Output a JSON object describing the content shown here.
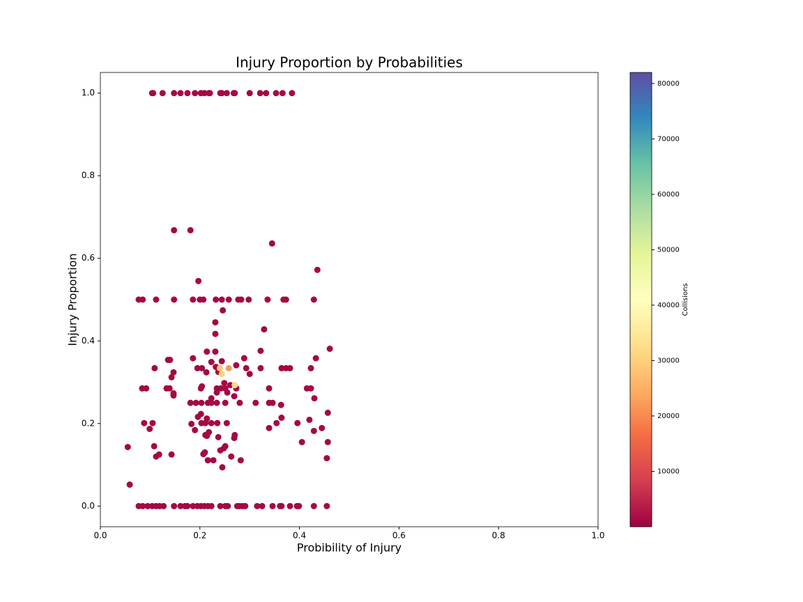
{
  "chart_data": {
    "type": "scatter",
    "title": "Injury Proportion by Probabilities",
    "x_label": "Probibility of Injury",
    "y_label": "Injury Proportion",
    "colorbar_label": "Collisions",
    "colormap": "Spectral",
    "xlim": [
      0,
      1
    ],
    "ylim": [
      -0.05,
      1.05
    ],
    "xticks": [
      {
        "value": 0,
        "label": "0.0"
      },
      0.2,
      0.4,
      0.6,
      0.8,
      {
        "value": 1,
        "label": "1.0"
      }
    ],
    "yticks": [
      {
        "value": 0,
        "label": "0.0"
      },
      0.2,
      0.4,
      0.6,
      0.8,
      {
        "value": 1,
        "label": "1.0"
      }
    ],
    "clim": [
      0,
      82000
    ],
    "cticks": [
      10000,
      20000,
      30000,
      40000,
      50000,
      60000,
      70000,
      80000
    ],
    "x": [
      0.104,
      0.106,
      0.125,
      0.148,
      0.161,
      0.175,
      0.19,
      0.202,
      0.209,
      0.218,
      0.22,
      0.241,
      0.244,
      0.254,
      0.268,
      0.27,
      0.3,
      0.321,
      0.333,
      0.353,
      0.366,
      0.385,
      0.077,
      0.085,
      0.095,
      0.104,
      0.112,
      0.119,
      0.127,
      0.148,
      0.161,
      0.17,
      0.175,
      0.186,
      0.195,
      0.202,
      0.209,
      0.216,
      0.223,
      0.241,
      0.251,
      0.256,
      0.275,
      0.28,
      0.286,
      0.291,
      0.315,
      0.325,
      0.346,
      0.361,
      0.364,
      0.381,
      0.395,
      0.399,
      0.429,
      0.455,
      0.077,
      0.085,
      0.112,
      0.148,
      0.186,
      0.2,
      0.207,
      0.232,
      0.244,
      0.258,
      0.277,
      0.283,
      0.298,
      0.336,
      0.368,
      0.373,
      0.429,
      0.148,
      0.181,
      0.345,
      0.436,
      0.197,
      0.246,
      0.329,
      0.231,
      0.231,
      0.461,
      0.322,
      0.214,
      0.231,
      0.136,
      0.14,
      0.186,
      0.223,
      0.244,
      0.289,
      0.433,
      0.109,
      0.147,
      0.143,
      0.195,
      0.204,
      0.213,
      0.293,
      0.3,
      0.322,
      0.364,
      0.373,
      0.381,
      0.423,
      0.273,
      0.232,
      0.237,
      0.084,
      0.092,
      0.133,
      0.139,
      0.202,
      0.204,
      0.234,
      0.242,
      0.251,
      0.261,
      0.273,
      0.339,
      0.415,
      0.423,
      0.249,
      0.255,
      0.234,
      0.147,
      0.147,
      0.269,
      0.223,
      0.43,
      0.181,
      0.192,
      0.203,
      0.216,
      0.223,
      0.234,
      0.251,
      0.28,
      0.312,
      0.339,
      0.346,
      0.363,
      0.202,
      0.196,
      0.214,
      0.364,
      0.457,
      0.088,
      0.105,
      0.183,
      0.203,
      0.211,
      0.223,
      0.235,
      0.254,
      0.354,
      0.396,
      0.42,
      0.099,
      0.19,
      0.339,
      0.445,
      0.429,
      0.237,
      0.214,
      0.218,
      0.211,
      0.27,
      0.269,
      0.405,
      0.457,
      0.108,
      0.055,
      0.251,
      0.248,
      0.241,
      0.21,
      0.207,
      0.118,
      0.143,
      0.112,
      0.263,
      0.216,
      0.227,
      0.282,
      0.455,
      0.245,
      0.059,
      0.24,
      0.244,
      0.258,
      0.27
    ],
    "values": [
      1,
      1,
      1,
      1,
      1,
      1,
      1,
      1,
      1,
      1,
      1,
      1,
      1,
      1,
      1,
      1,
      1,
      1,
      1,
      1,
      1,
      1,
      0,
      0,
      0,
      0,
      0,
      0,
      0,
      0,
      0,
      0,
      0,
      0,
      0,
      0,
      0,
      0,
      0,
      0,
      0,
      0,
      0,
      0,
      0,
      0,
      0,
      0,
      0,
      0,
      0,
      0,
      0,
      0,
      0,
      0,
      0.5,
      0.5,
      0.5,
      0.5,
      0.5,
      0.5,
      0.5,
      0.5,
      0.5,
      0.5,
      0.5,
      0.5,
      0.5,
      0.5,
      0.5,
      0.5,
      0.5,
      0.668,
      0.668,
      0.636,
      0.572,
      0.545,
      0.474,
      0.428,
      0.445,
      0.417,
      0.381,
      0.376,
      0.374,
      0.374,
      0.354,
      0.354,
      0.358,
      0.349,
      0.351,
      0.358,
      0.358,
      0.334,
      0.324,
      0.312,
      0.334,
      0.334,
      0.324,
      0.334,
      0.32,
      0.334,
      0.334,
      0.334,
      0.334,
      0.334,
      0.341,
      0.337,
      0.325,
      0.285,
      0.285,
      0.285,
      0.285,
      0.285,
      0.29,
      0.285,
      0.285,
      0.285,
      0.293,
      0.285,
      0.285,
      0.285,
      0.285,
      0.298,
      0.275,
      0.275,
      0.273,
      0.268,
      0.266,
      0.261,
      0.261,
      0.25,
      0.25,
      0.25,
      0.25,
      0.25,
      0.25,
      0.25,
      0.25,
      0.25,
      0.25,
      0.25,
      0.245,
      0.223,
      0.216,
      0.212,
      0.214,
      0.226,
      0.201,
      0.201,
      0.199,
      0.201,
      0.201,
      0.201,
      0.201,
      0.201,
      0.201,
      0.201,
      0.209,
      0.187,
      0.184,
      0.189,
      0.189,
      0.182,
      0.167,
      0.17,
      0.179,
      0.172,
      0.172,
      0.165,
      0.155,
      0.155,
      0.145,
      0.143,
      0.145,
      0.14,
      0.135,
      0.13,
      0.126,
      0.125,
      0.125,
      0.12,
      0.12,
      0.111,
      0.111,
      0.111,
      0.116,
      0.094,
      0.052,
      0.334,
      0.32,
      0.334,
      0.293
    ],
    "c": [
      1000,
      1000,
      1000,
      1000,
      1000,
      1000,
      1000,
      1000,
      1000,
      1000,
      1000,
      1000,
      1000,
      1000,
      1000,
      1000,
      1000,
      1000,
      1000,
      1000,
      1000,
      1000,
      1000,
      1000,
      1000,
      1000,
      1000,
      1000,
      1000,
      1000,
      1000,
      1000,
      1000,
      1000,
      1000,
      1000,
      1000,
      1000,
      1000,
      1000,
      1000,
      1000,
      1000,
      1000,
      1000,
      1000,
      1000,
      1000,
      1000,
      1000,
      1000,
      1000,
      1000,
      1000,
      1000,
      1000,
      1000,
      1000,
      1000,
      1000,
      1000,
      1000,
      1000,
      1000,
      1000,
      1000,
      1000,
      1000,
      1000,
      1000,
      1000,
      1000,
      1000,
      1000,
      1000,
      1000,
      1000,
      1000,
      1000,
      1000,
      1000,
      1000,
      1000,
      1000,
      1000,
      1000,
      1000,
      1000,
      1000,
      1000,
      1000,
      1000,
      1000,
      1000,
      1000,
      1000,
      1000,
      1000,
      1000,
      1000,
      1000,
      1000,
      1000,
      1000,
      1000,
      1000,
      1000,
      1000,
      1000,
      1000,
      1000,
      1000,
      1000,
      1000,
      1000,
      1000,
      1000,
      1000,
      1000,
      1000,
      1000,
      1000,
      1000,
      1000,
      1000,
      1000,
      1000,
      1000,
      1000,
      1000,
      1000,
      1000,
      1000,
      1000,
      1000,
      1000,
      1000,
      1000,
      1000,
      1000,
      1000,
      1000,
      1000,
      1000,
      1000,
      1000,
      1000,
      1000,
      1000,
      1000,
      1000,
      1000,
      1000,
      1000,
      1000,
      1000,
      1000,
      1000,
      1000,
      1000,
      1000,
      1000,
      1000,
      1000,
      1000,
      1000,
      1000,
      1000,
      1000,
      1000,
      1000,
      1000,
      1000,
      1000,
      1000,
      1000,
      1000,
      1000,
      1000,
      1000,
      1000,
      1000,
      1000,
      1000,
      1000,
      1000,
      1000,
      1000,
      1000,
      28000,
      30000,
      22000,
      32000
    ]
  }
}
